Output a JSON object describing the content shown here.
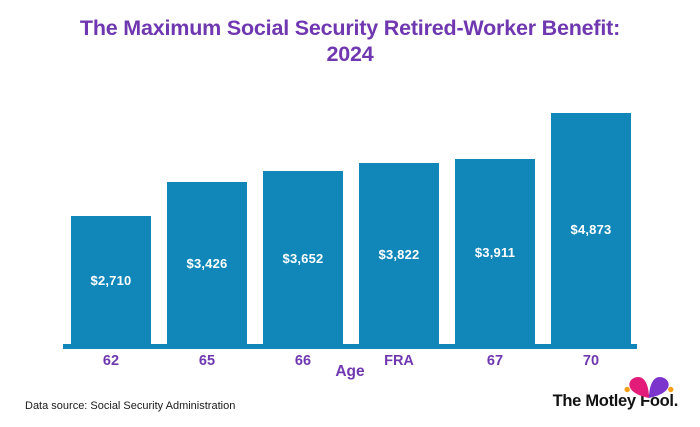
{
  "title": {
    "line1": "The Maximum Social Security Retired-Worker Benefit:",
    "line2": "2024"
  },
  "chart_data": {
    "type": "bar",
    "title": "The Maximum Social Security Retired-Worker Benefit: 2024",
    "categories": [
      "62",
      "65",
      "66",
      "FRA",
      "67",
      "70"
    ],
    "values": [
      2710,
      3426,
      3652,
      3822,
      3911,
      4873
    ],
    "value_labels": [
      "$2,710",
      "$3,426",
      "$3,652",
      "$3,822",
      "$3,911",
      "$4,873"
    ],
    "xlabel": "Age",
    "ylabel": "",
    "ylim": [
      0,
      4873
    ],
    "grid": false,
    "legend": "none",
    "bar_color": "#1187b9",
    "value_label_color": "#ffffff",
    "axis_line_color": "#1187b9",
    "tick_label_color": "#7038b0",
    "title_color": "#7038b0"
  },
  "footer": {
    "data_source": "Data source: Social Security Administration"
  },
  "logo": {
    "text": "The Motley Fool.",
    "hat_left_color": "#e31c79",
    "hat_right_color": "#7b35cc",
    "hat_dot_color": "#f7a01d",
    "text_color": "#121212"
  },
  "colors": {
    "background": "#ffffff"
  }
}
